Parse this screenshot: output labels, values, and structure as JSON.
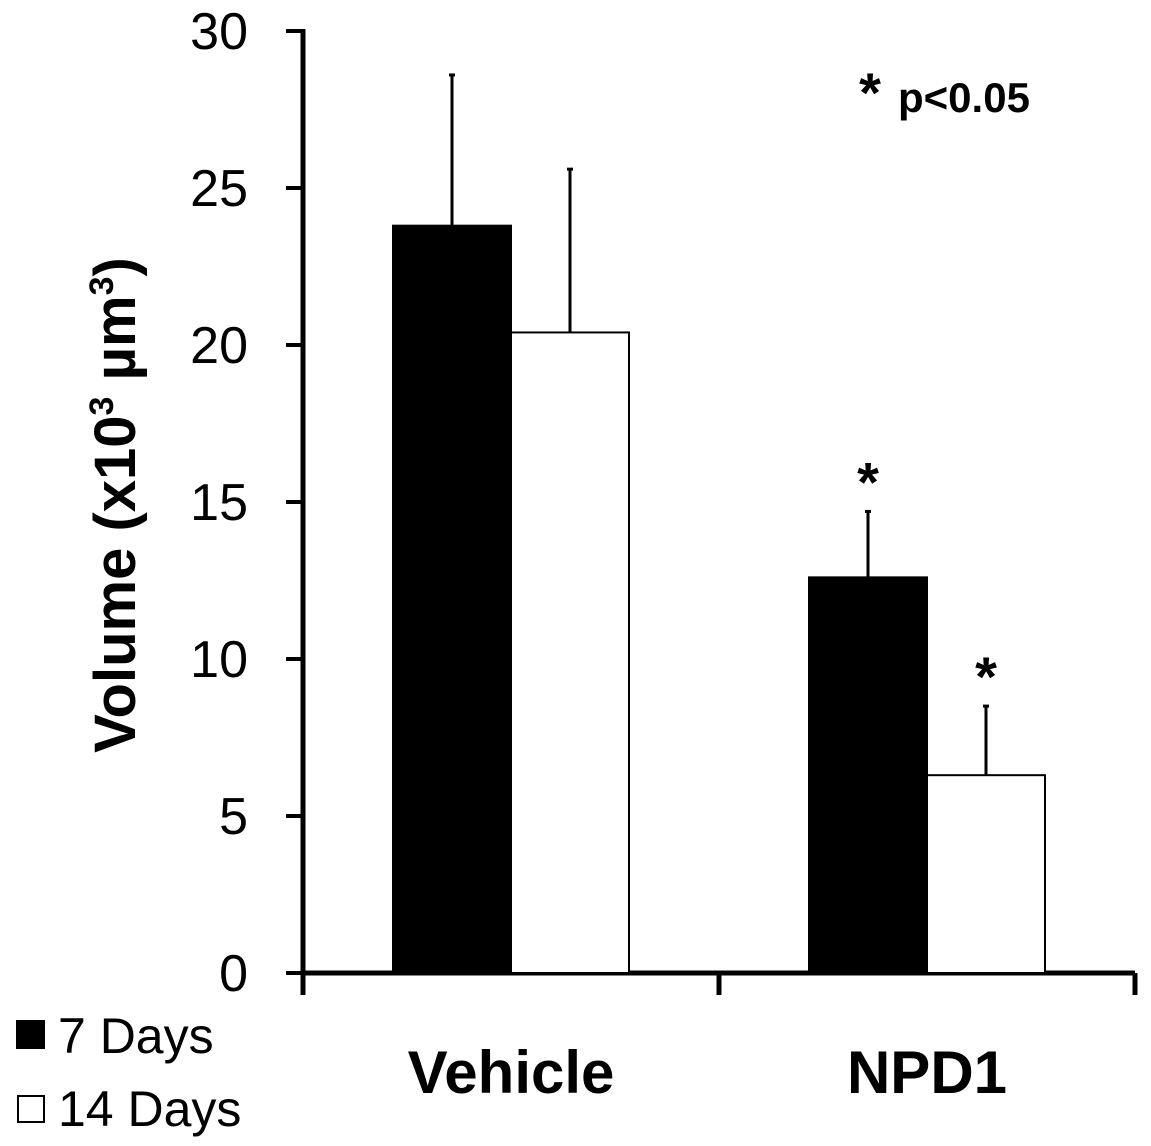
{
  "chart_data": {
    "type": "bar",
    "categories": [
      "Vehicle",
      "NPD1"
    ],
    "series": [
      {
        "name": "7 Days",
        "color": "#000000",
        "values": [
          23.8,
          12.6
        ],
        "errors": [
          4.8,
          2.1
        ],
        "significant": [
          false,
          true
        ]
      },
      {
        "name": "14 Days",
        "color": "#ffffff",
        "values": [
          20.4,
          6.3
        ],
        "errors": [
          5.2,
          2.2
        ],
        "significant": [
          false,
          true
        ]
      }
    ],
    "ylabel_main": "Volume (x10",
    "ylabel_sup": "3",
    "ylabel_unit": " µm",
    "ylabel_sup2": "3",
    "ylabel_close": ")",
    "yticks": [
      "0",
      "5",
      "10",
      "15",
      "20",
      "25",
      "30"
    ],
    "ylim": [
      0,
      30
    ],
    "significance_marker": "*",
    "significance_note": "p<0.05",
    "legend_position": "bottom-left",
    "grid": false
  }
}
